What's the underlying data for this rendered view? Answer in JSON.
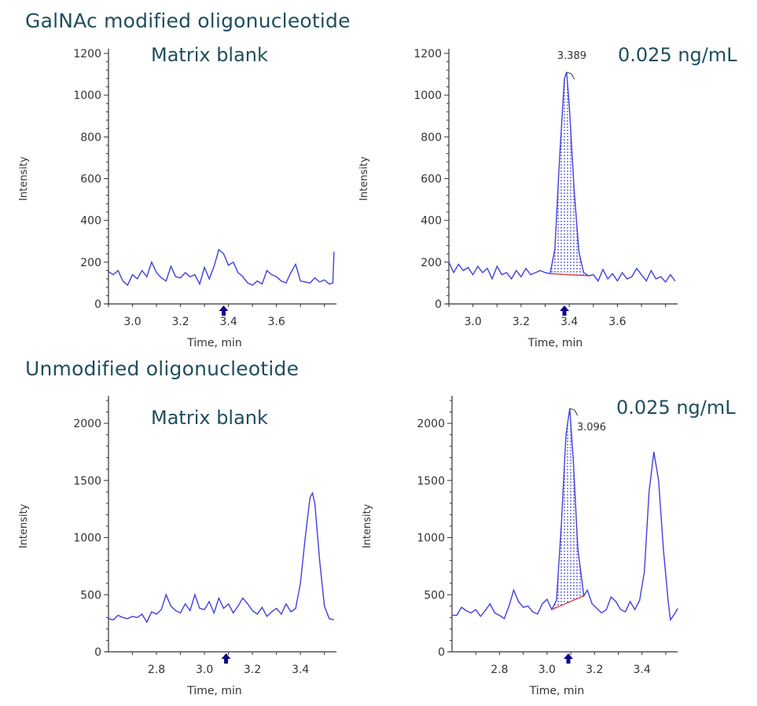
{
  "sections": [
    {
      "title": "GalNAc modified oligonucleotide"
    },
    {
      "title": "Unmodified oligonucleotide"
    }
  ],
  "colors": {
    "trace": "#4040dd",
    "baseline": "#e03030",
    "fill": "#4040dd",
    "marker": "#0a0a8a",
    "title": "#1f4e5f"
  },
  "chart_data": [
    {
      "type": "line",
      "label": "Matrix blank",
      "xlabel": "Time, min",
      "ylabel": "Intensity",
      "xlim": [
        2.9,
        3.85
      ],
      "ylim": [
        0,
        1200
      ],
      "yticks": [
        0,
        200,
        400,
        600,
        800,
        1000,
        1200
      ],
      "xticks": [
        "3.0",
        "3.2",
        "3.4",
        "3.6"
      ],
      "marker_x": 3.38,
      "x": [
        2.9,
        2.92,
        2.94,
        2.96,
        2.98,
        3.0,
        3.02,
        3.04,
        3.06,
        3.08,
        3.1,
        3.12,
        3.14,
        3.16,
        3.18,
        3.2,
        3.22,
        3.24,
        3.26,
        3.28,
        3.3,
        3.32,
        3.34,
        3.36,
        3.38,
        3.4,
        3.42,
        3.44,
        3.46,
        3.48,
        3.5,
        3.52,
        3.54,
        3.56,
        3.58,
        3.6,
        3.62,
        3.64,
        3.66,
        3.68,
        3.7,
        3.72,
        3.74,
        3.76,
        3.78,
        3.8,
        3.82,
        3.835,
        3.84
      ],
      "y": [
        155,
        140,
        160,
        110,
        90,
        140,
        120,
        160,
        130,
        200,
        150,
        125,
        110,
        180,
        130,
        125,
        150,
        130,
        140,
        95,
        175,
        120,
        180,
        260,
        240,
        185,
        200,
        150,
        130,
        100,
        90,
        110,
        95,
        160,
        140,
        130,
        110,
        100,
        150,
        190,
        110,
        105,
        100,
        125,
        105,
        115,
        95,
        100,
        250
      ]
    },
    {
      "type": "line",
      "label": "0.025 ng/mL",
      "xlabel": "Time, min",
      "ylabel": "Intensity",
      "xlim": [
        2.9,
        3.85
      ],
      "ylim": [
        0,
        1200
      ],
      "yticks": [
        0,
        200,
        400,
        600,
        800,
        1000,
        1200
      ],
      "xticks": [
        "3.0",
        "3.2",
        "3.4",
        "3.6"
      ],
      "marker_x": 3.38,
      "peak": {
        "rt": "3.389",
        "x": 3.389,
        "y": 1110
      },
      "integration": {
        "x_start": 3.32,
        "y_start": 145,
        "x_end": 3.48,
        "y_end": 135
      },
      "x": [
        2.9,
        2.92,
        2.94,
        2.96,
        2.98,
        3.0,
        3.02,
        3.04,
        3.06,
        3.08,
        3.1,
        3.12,
        3.14,
        3.16,
        3.18,
        3.2,
        3.22,
        3.24,
        3.26,
        3.28,
        3.3,
        3.32,
        3.34,
        3.36,
        3.38,
        3.389,
        3.4,
        3.42,
        3.44,
        3.46,
        3.48,
        3.5,
        3.52,
        3.54,
        3.56,
        3.58,
        3.6,
        3.62,
        3.64,
        3.66,
        3.68,
        3.7,
        3.72,
        3.74,
        3.76,
        3.78,
        3.8,
        3.82,
        3.84
      ],
      "y": [
        200,
        150,
        190,
        160,
        175,
        140,
        180,
        150,
        170,
        120,
        180,
        140,
        150,
        120,
        160,
        130,
        170,
        140,
        150,
        160,
        150,
        145,
        260,
        700,
        1080,
        1110,
        950,
        550,
        250,
        150,
        135,
        140,
        110,
        165,
        120,
        145,
        110,
        150,
        120,
        130,
        170,
        140,
        110,
        160,
        120,
        130,
        105,
        140,
        110
      ]
    },
    {
      "type": "line",
      "label": "Matrix blank",
      "xlabel": "Time, min",
      "ylabel": "Intensity",
      "xlim": [
        2.6,
        3.55
      ],
      "ylim": [
        0,
        2200
      ],
      "yticks": [
        0,
        500,
        1000,
        1500,
        2000
      ],
      "xticks": [
        "2.8",
        "3.0",
        "3.2",
        "3.4"
      ],
      "marker_x": 3.09,
      "x": [
        2.6,
        2.62,
        2.64,
        2.66,
        2.68,
        2.7,
        2.72,
        2.74,
        2.76,
        2.78,
        2.8,
        2.82,
        2.84,
        2.86,
        2.88,
        2.9,
        2.92,
        2.94,
        2.96,
        2.98,
        3.0,
        3.02,
        3.04,
        3.06,
        3.08,
        3.1,
        3.12,
        3.14,
        3.16,
        3.18,
        3.2,
        3.22,
        3.24,
        3.26,
        3.28,
        3.3,
        3.32,
        3.34,
        3.36,
        3.38,
        3.4,
        3.42,
        3.44,
        3.45,
        3.46,
        3.48,
        3.5,
        3.52,
        3.54
      ],
      "y": [
        290,
        280,
        320,
        300,
        290,
        310,
        300,
        330,
        260,
        350,
        330,
        370,
        500,
        400,
        360,
        340,
        420,
        360,
        500,
        380,
        370,
        440,
        340,
        470,
        380,
        420,
        340,
        400,
        470,
        420,
        360,
        330,
        390,
        310,
        350,
        380,
        330,
        420,
        350,
        380,
        600,
        1000,
        1350,
        1390,
        1300,
        800,
        400,
        290,
        280
      ]
    },
    {
      "type": "line",
      "label": "0.025 ng/mL",
      "xlabel": "Time, min",
      "ylabel": "Intensity",
      "xlim": [
        2.6,
        3.55
      ],
      "ylim": [
        0,
        2200
      ],
      "yticks": [
        0,
        500,
        1000,
        1500,
        2000
      ],
      "xticks": [
        "2.8",
        "3.0",
        "3.2",
        "3.4"
      ],
      "marker_x": 3.09,
      "peak": {
        "rt": "3.096",
        "x": 3.096,
        "y": 2130
      },
      "integration": {
        "x_start": 3.02,
        "y_start": 370,
        "x_end": 3.155,
        "y_end": 490
      },
      "x": [
        2.6,
        2.62,
        2.64,
        2.66,
        2.68,
        2.7,
        2.72,
        2.74,
        2.76,
        2.78,
        2.8,
        2.82,
        2.84,
        2.86,
        2.88,
        2.9,
        2.92,
        2.94,
        2.96,
        2.98,
        3.0,
        3.02,
        3.04,
        3.06,
        3.08,
        3.096,
        3.11,
        3.13,
        3.155,
        3.17,
        3.19,
        3.21,
        3.23,
        3.25,
        3.27,
        3.29,
        3.31,
        3.33,
        3.35,
        3.37,
        3.39,
        3.41,
        3.43,
        3.45,
        3.47,
        3.49,
        3.51,
        3.52,
        3.54,
        3.55
      ],
      "y": [
        320,
        320,
        390,
        360,
        340,
        370,
        310,
        360,
        420,
        340,
        320,
        290,
        400,
        540,
        440,
        390,
        400,
        350,
        330,
        420,
        460,
        370,
        450,
        1100,
        1900,
        2130,
        1700,
        900,
        490,
        540,
        420,
        380,
        340,
        370,
        480,
        440,
        370,
        350,
        440,
        370,
        450,
        700,
        1400,
        1750,
        1500,
        900,
        450,
        280,
        340,
        380
      ]
    }
  ]
}
